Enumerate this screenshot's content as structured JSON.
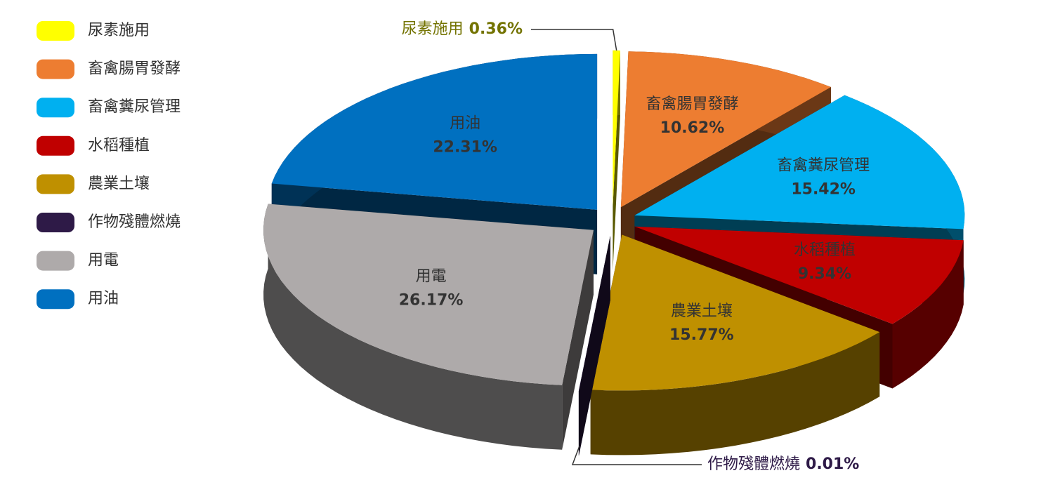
{
  "chart_data": {
    "type": "pie3d",
    "categories": [
      "尿素施用",
      "畜禽腸胃發酵",
      "畜禽糞尿管理",
      "水稻種植",
      "農業土壤",
      "作物殘體燃燒",
      "用電",
      "用油"
    ],
    "values": [
      0.36,
      10.62,
      15.42,
      9.34,
      15.77,
      0.01,
      26.17,
      22.31
    ],
    "value_labels": [
      "0.36%",
      "10.62%",
      "15.42%",
      "9.34%",
      "15.77%",
      "0.01%",
      "26.17%",
      "22.31%"
    ],
    "colors": [
      "#ffff00",
      "#ed7d31",
      "#00b0f0",
      "#c00000",
      "#bf9000",
      "#2e1a47",
      "#aeaaaa",
      "#0070c0"
    ],
    "legend": "left"
  }
}
